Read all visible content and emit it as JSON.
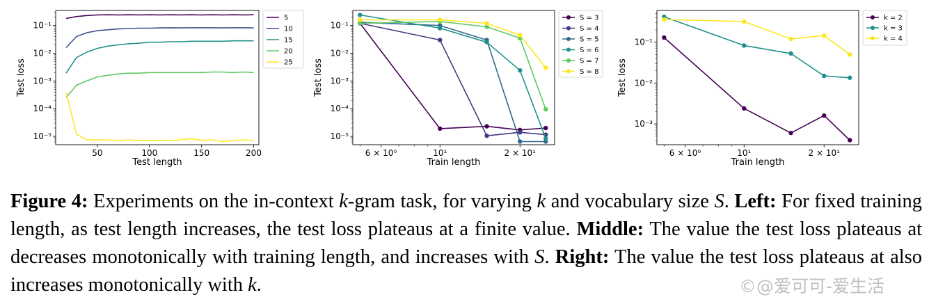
{
  "chart_data": [
    {
      "type": "line",
      "xlabel": "Test length",
      "ylabel": "Test loss",
      "xscale": "linear",
      "yscale": "log",
      "xlim": [
        10,
        205
      ],
      "ylim": [
        5e-06,
        0.35
      ],
      "xticks": [
        50,
        100,
        150,
        200
      ],
      "xtick_labels": [
        "50",
        "100",
        "150",
        "200"
      ],
      "yticks": [
        1e-05,
        0.0001,
        0.001,
        0.01,
        0.1
      ],
      "ytick_labels": [
        "10⁻⁵",
        "10⁻⁴",
        "10⁻³",
        "10⁻²",
        "10⁻¹"
      ],
      "legend_position": "outside-right",
      "markers": false,
      "x": [
        20,
        30,
        40,
        50,
        60,
        70,
        80,
        90,
        100,
        110,
        120,
        130,
        140,
        150,
        160,
        170,
        180,
        190,
        200
      ],
      "series": [
        {
          "name": "5",
          "color": "#440154",
          "values": [
            0.18,
            0.21,
            0.23,
            0.24,
            0.245,
            0.24,
            0.245,
            0.24,
            0.245,
            0.24,
            0.245,
            0.24,
            0.245,
            0.24,
            0.245,
            0.24,
            0.245,
            0.24,
            0.245
          ]
        },
        {
          "name": "10",
          "color": "#3b528b",
          "values": [
            0.016,
            0.04,
            0.055,
            0.065,
            0.07,
            0.075,
            0.078,
            0.08,
            0.08,
            0.082,
            0.083,
            0.082,
            0.083,
            0.083,
            0.083,
            0.082,
            0.083,
            0.083,
            0.082
          ]
        },
        {
          "name": "15",
          "color": "#21918c",
          "values": [
            0.0019,
            0.007,
            0.011,
            0.015,
            0.018,
            0.02,
            0.022,
            0.023,
            0.025,
            0.025,
            0.026,
            0.026,
            0.027,
            0.027,
            0.027,
            0.027,
            0.028,
            0.028,
            0.028
          ]
        },
        {
          "name": "20",
          "color": "#5ec962",
          "values": [
            0.00025,
            0.0007,
            0.001,
            0.0014,
            0.0016,
            0.0018,
            0.0019,
            0.0019,
            0.002,
            0.002,
            0.002,
            0.002,
            0.002,
            0.002,
            0.0021,
            0.0021,
            0.002,
            0.0021,
            0.002
          ]
        },
        {
          "name": "25",
          "color": "#fde725",
          "values": [
            0.0004,
            1.2e-05,
            7.5e-06,
            7.5e-06,
            7.5e-06,
            7e-06,
            7.5e-06,
            7e-06,
            7e-06,
            7.2e-06,
            7e-06,
            7.5e-06,
            8.2e-06,
            7.2e-06,
            7.5e-06,
            6.5e-06,
            7e-06,
            7.5e-06,
            7e-06
          ]
        }
      ]
    },
    {
      "type": "line",
      "xlabel": "Train length",
      "ylabel": "Test loss",
      "xscale": "log",
      "yscale": "log",
      "xlim": [
        4.7,
        27
      ],
      "ylim": [
        5e-06,
        0.35
      ],
      "xticks": [
        6,
        10,
        20
      ],
      "xtick_labels": [
        "6 × 10⁰",
        "10¹",
        "2 × 10¹"
      ],
      "yticks": [
        1e-05,
        0.0001,
        0.001,
        0.01,
        0.1
      ],
      "ytick_labels": [
        "10⁻⁵",
        "10⁻⁴",
        "10⁻³",
        "10⁻²",
        "10⁻¹"
      ],
      "legend_position": "outside-right",
      "markers": true,
      "x": [
        5,
        10,
        15,
        20,
        25
      ],
      "series": [
        {
          "name": "S = 3",
          "color": "#440154",
          "values": [
            0.12,
            1.9e-05,
            2.3e-05,
            1.7e-05,
            2e-05
          ]
        },
        {
          "name": "S = 4",
          "color": "#443983",
          "values": [
            0.12,
            0.03,
            1.05e-05,
            1.4e-05,
            1.15e-05
          ]
        },
        {
          "name": "S = 5",
          "color": "#31688e",
          "values": [
            0.13,
            0.1,
            0.03,
            6.5e-06,
            6.5e-06
          ]
        },
        {
          "name": "S = 6",
          "color": "#21918c",
          "values": [
            0.24,
            0.08,
            0.025,
            0.0024,
            8.5e-06
          ]
        },
        {
          "name": "S = 7",
          "color": "#5ec962",
          "values": [
            0.12,
            0.14,
            0.09,
            0.035,
            9.5e-05
          ]
        },
        {
          "name": "S = 8",
          "color": "#fde725",
          "values": [
            0.16,
            0.16,
            0.12,
            0.045,
            0.003
          ]
        }
      ]
    },
    {
      "type": "line",
      "xlabel": "Train length",
      "ylabel": "Test loss",
      "xscale": "log",
      "yscale": "log",
      "xlim": [
        4.7,
        27
      ],
      "ylim": [
        0.00031,
        0.6
      ],
      "xticks": [
        6,
        10,
        20
      ],
      "xtick_labels": [
        "6 × 10⁰",
        "10¹",
        "2 × 10¹"
      ],
      "yticks": [
        0.001,
        0.01,
        0.1
      ],
      "ytick_labels": [
        "10⁻³",
        "10⁻²",
        "10⁻¹"
      ],
      "legend_position": "outside-right",
      "markers": true,
      "x": [
        5,
        10,
        15,
        20,
        25
      ],
      "series": [
        {
          "name": "k = 2",
          "color": "#440154",
          "values": [
            0.13,
            0.0024,
            0.0006,
            0.0016,
            0.0004
          ]
        },
        {
          "name": "k = 3",
          "color": "#21918c",
          "values": [
            0.42,
            0.083,
            0.053,
            0.015,
            0.0135
          ]
        },
        {
          "name": "k = 4",
          "color": "#fde725",
          "values": [
            0.36,
            0.32,
            0.12,
            0.145,
            0.05
          ]
        }
      ]
    }
  ],
  "caption": {
    "label": "Figure 4:",
    "text_a": " Experiments on the in-context ",
    "math_k1": "k",
    "text_b": "-gram task, for varying ",
    "math_k2": "k",
    "text_c": " and vocabulary size ",
    "math_s1": "S",
    "text_d": ". ",
    "left_label": "Left:",
    "left_text": " For fixed training length, as test length increases, the test loss plateaus at a finite value. ",
    "middle_label": "Middle:",
    "middle_text": " The value the test loss plateaus at decreases monotonically with training length, and increases with ",
    "math_s2": "S",
    "text_e": ". ",
    "right_label": "Right:",
    "right_text": " The value the test loss plateaus at also increases monotonically with ",
    "math_k3": "k",
    "text_f": "."
  },
  "watermark": "©@爱可可-爱生活"
}
